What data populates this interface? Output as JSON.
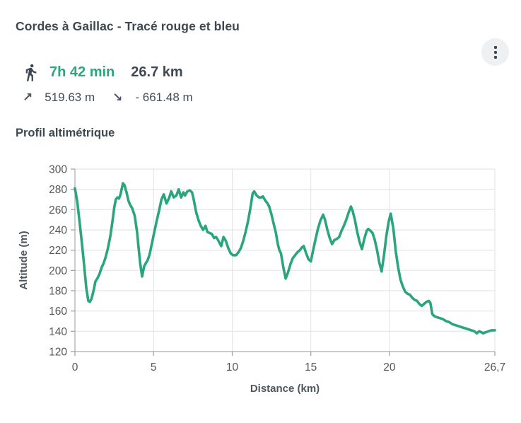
{
  "header": {
    "title": "Cordes à Gaillac - Tracé rouge et bleu"
  },
  "stats": {
    "duration": "7h 42 min",
    "distance": "26.7 km",
    "ascent_icon": "↗",
    "ascent": "519.63 m",
    "descent_icon": "↘",
    "descent": "- 661.48 m"
  },
  "section": {
    "title": "Profil altimétrique"
  },
  "colors": {
    "accent_green": "#2aa57d",
    "heading_text": "#3d4852",
    "stats_text": "#424d57",
    "tick_text": "#54585b",
    "axis_title_text": "#4e565e",
    "grid_line": "#e2e2e2",
    "axis_line": "#a9acae",
    "tick_mark": "#9b9ea1",
    "menu_circle_bg": "#eef0f2"
  },
  "chart_data": {
    "type": "line",
    "title": "Profil altimétrique",
    "xlabel": "Distance (km)",
    "ylabel": "Altitude (m)",
    "xlim": [
      0,
      26.7
    ],
    "ylim": [
      120,
      300
    ],
    "x_ticks": [
      0,
      5,
      10,
      15,
      20,
      26.7
    ],
    "x_tick_labels": [
      "0",
      "5",
      "10",
      "15",
      "20",
      "26,7"
    ],
    "y_ticks": [
      300,
      280,
      260,
      240,
      220,
      200,
      180,
      160,
      140,
      120
    ],
    "grid": true,
    "legend": false,
    "line_color": "#2aa57d",
    "series_name": "Altitude",
    "points": [
      [
        0,
        281
      ],
      [
        0.15,
        268
      ],
      [
        0.3,
        247
      ],
      [
        0.45,
        226
      ],
      [
        0.6,
        203
      ],
      [
        0.72,
        183
      ],
      [
        0.85,
        170
      ],
      [
        0.95,
        169
      ],
      [
        1.05,
        172
      ],
      [
        1.2,
        181
      ],
      [
        1.3,
        189
      ],
      [
        1.42,
        192
      ],
      [
        1.55,
        196
      ],
      [
        1.7,
        203
      ],
      [
        1.82,
        207
      ],
      [
        1.95,
        213
      ],
      [
        2.1,
        222
      ],
      [
        2.25,
        234
      ],
      [
        2.4,
        250
      ],
      [
        2.5,
        262
      ],
      [
        2.6,
        270
      ],
      [
        2.7,
        272
      ],
      [
        2.8,
        271
      ],
      [
        2.9,
        275
      ],
      [
        3.05,
        286
      ],
      [
        3.15,
        284
      ],
      [
        3.28,
        277
      ],
      [
        3.4,
        269
      ],
      [
        3.5,
        265
      ],
      [
        3.65,
        261
      ],
      [
        3.8,
        254
      ],
      [
        3.95,
        238
      ],
      [
        4.05,
        222
      ],
      [
        4.15,
        207
      ],
      [
        4.27,
        194
      ],
      [
        4.4,
        204
      ],
      [
        4.5,
        207
      ],
      [
        4.62,
        210
      ],
      [
        4.75,
        216
      ],
      [
        4.9,
        227
      ],
      [
        5.05,
        238
      ],
      [
        5.2,
        249
      ],
      [
        5.35,
        259
      ],
      [
        5.5,
        270
      ],
      [
        5.65,
        275
      ],
      [
        5.82,
        266
      ],
      [
        6.0,
        272
      ],
      [
        6.12,
        278
      ],
      [
        6.28,
        272
      ],
      [
        6.45,
        274
      ],
      [
        6.6,
        280
      ],
      [
        6.75,
        272
      ],
      [
        6.9,
        277
      ],
      [
        7.0,
        274
      ],
      [
        7.15,
        278
      ],
      [
        7.3,
        279
      ],
      [
        7.45,
        277
      ],
      [
        7.55,
        270
      ],
      [
        7.7,
        258
      ],
      [
        7.85,
        250
      ],
      [
        8.0,
        244
      ],
      [
        8.15,
        240
      ],
      [
        8.3,
        244
      ],
      [
        8.42,
        238
      ],
      [
        8.55,
        237
      ],
      [
        8.7,
        236
      ],
      [
        8.85,
        232
      ],
      [
        8.97,
        233
      ],
      [
        9.1,
        230
      ],
      [
        9.3,
        224
      ],
      [
        9.45,
        233
      ],
      [
        9.6,
        229
      ],
      [
        9.75,
        222
      ],
      [
        9.9,
        217
      ],
      [
        10.05,
        215
      ],
      [
        10.25,
        215
      ],
      [
        10.4,
        218
      ],
      [
        10.55,
        222
      ],
      [
        10.7,
        229
      ],
      [
        10.85,
        238
      ],
      [
        11.0,
        248
      ],
      [
        11.15,
        261
      ],
      [
        11.3,
        276
      ],
      [
        11.4,
        278
      ],
      [
        11.55,
        274
      ],
      [
        11.7,
        272
      ],
      [
        11.85,
        272
      ],
      [
        11.95,
        273
      ],
      [
        12.1,
        269
      ],
      [
        12.25,
        266
      ],
      [
        12.35,
        263
      ],
      [
        12.5,
        255
      ],
      [
        12.62,
        247
      ],
      [
        12.78,
        237
      ],
      [
        12.9,
        226
      ],
      [
        13.0,
        220
      ],
      [
        13.1,
        217
      ],
      [
        13.25,
        203
      ],
      [
        13.4,
        192
      ],
      [
        13.55,
        198
      ],
      [
        13.7,
        206
      ],
      [
        13.85,
        212
      ],
      [
        14.0,
        215
      ],
      [
        14.15,
        218
      ],
      [
        14.3,
        220
      ],
      [
        14.45,
        223
      ],
      [
        14.55,
        224
      ],
      [
        14.7,
        217
      ],
      [
        14.85,
        211
      ],
      [
        15.0,
        209
      ],
      [
        15.15,
        220
      ],
      [
        15.3,
        231
      ],
      [
        15.45,
        241
      ],
      [
        15.6,
        249
      ],
      [
        15.78,
        255
      ],
      [
        15.9,
        250
      ],
      [
        16.05,
        240
      ],
      [
        16.2,
        232
      ],
      [
        16.35,
        226
      ],
      [
        16.5,
        230
      ],
      [
        16.65,
        231
      ],
      [
        16.8,
        233
      ],
      [
        16.95,
        239
      ],
      [
        17.1,
        244
      ],
      [
        17.25,
        250
      ],
      [
        17.4,
        257
      ],
      [
        17.55,
        263
      ],
      [
        17.65,
        259
      ],
      [
        17.8,
        250
      ],
      [
        17.95,
        238
      ],
      [
        18.1,
        228
      ],
      [
        18.25,
        221
      ],
      [
        18.4,
        231
      ],
      [
        18.55,
        239
      ],
      [
        18.65,
        241
      ],
      [
        18.8,
        239
      ],
      [
        18.92,
        237
      ],
      [
        19.05,
        231
      ],
      [
        19.2,
        221
      ],
      [
        19.35,
        208
      ],
      [
        19.5,
        199
      ],
      [
        19.65,
        215
      ],
      [
        19.8,
        234
      ],
      [
        19.95,
        248
      ],
      [
        20.08,
        256
      ],
      [
        20.25,
        241
      ],
      [
        20.4,
        219
      ],
      [
        20.55,
        203
      ],
      [
        20.7,
        191
      ],
      [
        20.85,
        184
      ],
      [
        21.0,
        179
      ],
      [
        21.15,
        177
      ],
      [
        21.3,
        176
      ],
      [
        21.45,
        173
      ],
      [
        21.6,
        171
      ],
      [
        21.75,
        170
      ],
      [
        21.9,
        167
      ],
      [
        22.05,
        165
      ],
      [
        22.2,
        167
      ],
      [
        22.35,
        169
      ],
      [
        22.5,
        170
      ],
      [
        22.6,
        168
      ],
      [
        22.72,
        157
      ],
      [
        22.85,
        155
      ],
      [
        23.0,
        154
      ],
      [
        23.2,
        153
      ],
      [
        23.4,
        152
      ],
      [
        23.6,
        150
      ],
      [
        23.8,
        149
      ],
      [
        24.0,
        147
      ],
      [
        24.2,
        146
      ],
      [
        24.4,
        145
      ],
      [
        24.6,
        144
      ],
      [
        24.8,
        143
      ],
      [
        25.0,
        142
      ],
      [
        25.2,
        141
      ],
      [
        25.4,
        140
      ],
      [
        25.55,
        138
      ],
      [
        25.7,
        140
      ],
      [
        25.85,
        139
      ],
      [
        25.95,
        138
      ],
      [
        26.1,
        139
      ],
      [
        26.3,
        140
      ],
      [
        26.5,
        141
      ],
      [
        26.7,
        141
      ]
    ]
  }
}
